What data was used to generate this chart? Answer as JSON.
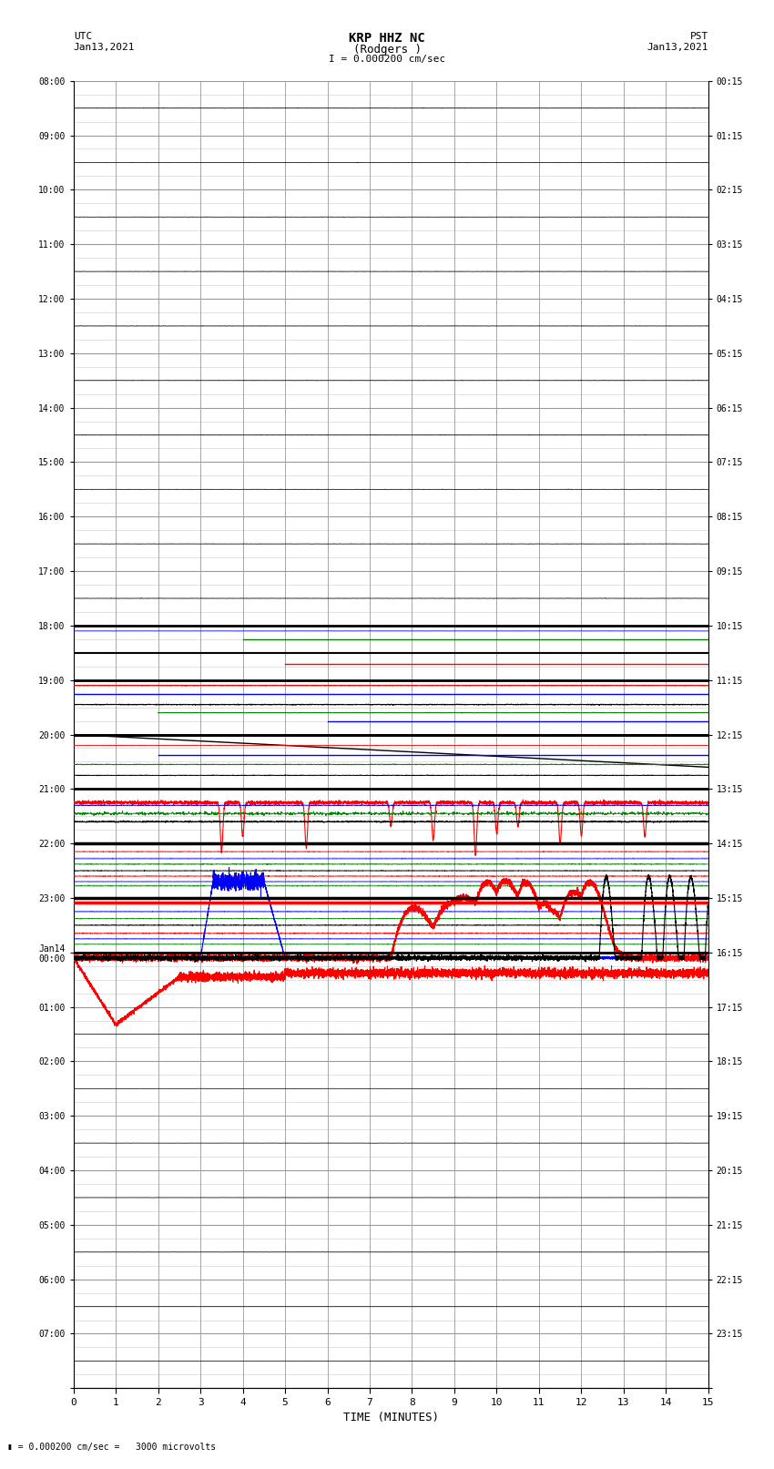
{
  "title_line1": "KRP HHZ NC",
  "title_line2": "(Rodgers )",
  "title_line3": "I = 0.000200 cm/sec",
  "left_label": "UTC",
  "left_date": "Jan13,2021",
  "right_label": "PST",
  "right_date": "Jan13,2021",
  "xlabel": "TIME (MINUTES)",
  "footer": "= 0.000200 cm/sec =   3000 microvolts",
  "xlim": [
    0,
    15
  ],
  "bg_color": "#ffffff",
  "grid_color": "#999999",
  "minor_grid_color": "#cccccc",
  "utc_labels": [
    "08:00",
    "09:00",
    "10:00",
    "11:00",
    "12:00",
    "13:00",
    "14:00",
    "15:00",
    "16:00",
    "17:00",
    "18:00",
    "19:00",
    "20:00",
    "21:00",
    "22:00",
    "23:00",
    "Jan14\n00:00",
    "01:00",
    "02:00",
    "03:00",
    "04:00",
    "05:00",
    "06:00",
    "07:00"
  ],
  "pst_labels": [
    "00:15",
    "01:15",
    "02:15",
    "03:15",
    "04:15",
    "05:15",
    "06:15",
    "07:15",
    "08:15",
    "09:15",
    "10:15",
    "11:15",
    "12:15",
    "13:15",
    "14:15",
    "15:15",
    "16:15",
    "17:15",
    "18:15",
    "19:15",
    "20:15",
    "21:15",
    "22:15",
    "23:15"
  ],
  "n_hours": 24,
  "subrows_per_hour": 4,
  "figwidth": 8.5,
  "figheight": 16.13,
  "dpi": 100
}
